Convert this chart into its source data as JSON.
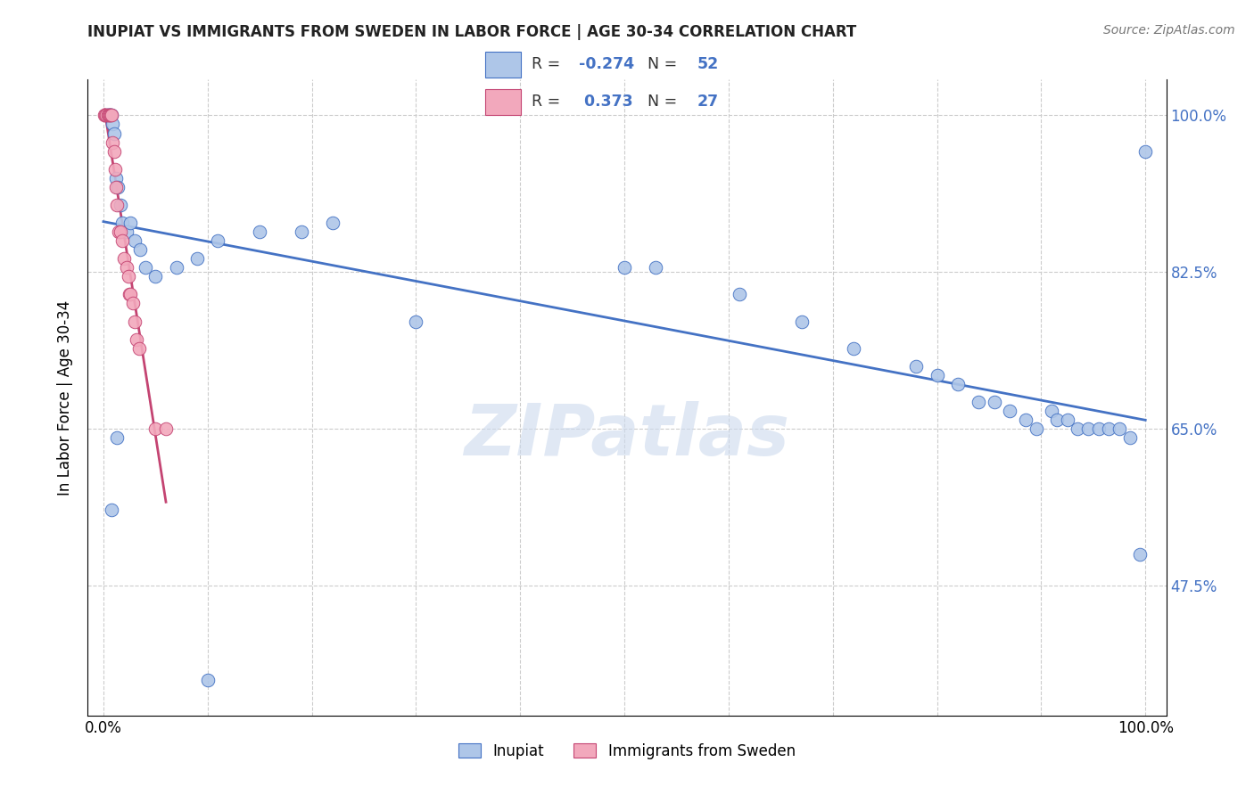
{
  "title": "INUPIAT VS IMMIGRANTS FROM SWEDEN IN LABOR FORCE | AGE 30-34 CORRELATION CHART",
  "source": "Source: ZipAtlas.com",
  "ylabel": "In Labor Force | Age 30-34",
  "blue_R": -0.274,
  "blue_N": 52,
  "pink_R": 0.373,
  "pink_N": 27,
  "blue_color": "#aec6e8",
  "pink_color": "#f2a8bc",
  "trend_blue": "#4472c4",
  "trend_pink": "#c44472",
  "watermark": "ZIPatlas",
  "yticks": [
    0.475,
    0.65,
    0.825,
    1.0
  ],
  "ytick_labels": [
    "47.5%",
    "65.0%",
    "82.5%",
    "100.0%"
  ],
  "ylim_low": 0.33,
  "ylim_high": 1.04,
  "xlim_low": -0.015,
  "xlim_high": 1.02,
  "blue_x": [
    0.003,
    0.004,
    0.005,
    0.006,
    0.007,
    0.008,
    0.009,
    0.01,
    0.012,
    0.014,
    0.016,
    0.018,
    0.022,
    0.026,
    0.03,
    0.035,
    0.04,
    0.05,
    0.07,
    0.09,
    0.11,
    0.15,
    0.19,
    0.22,
    0.3,
    0.5,
    0.53,
    0.61,
    0.67,
    0.72,
    0.78,
    0.8,
    0.82,
    0.84,
    0.855,
    0.87,
    0.885,
    0.895,
    0.91,
    0.915,
    0.925,
    0.935,
    0.945,
    0.955,
    0.965,
    0.975,
    0.985,
    0.995,
    1.0,
    0.008,
    0.013,
    0.1
  ],
  "blue_y": [
    1.0,
    1.0,
    1.0,
    1.0,
    1.0,
    1.0,
    0.99,
    0.98,
    0.93,
    0.92,
    0.9,
    0.88,
    0.87,
    0.88,
    0.86,
    0.85,
    0.83,
    0.82,
    0.83,
    0.84,
    0.86,
    0.87,
    0.87,
    0.88,
    0.77,
    0.83,
    0.83,
    0.8,
    0.77,
    0.74,
    0.72,
    0.71,
    0.7,
    0.68,
    0.68,
    0.67,
    0.66,
    0.65,
    0.67,
    0.66,
    0.66,
    0.65,
    0.65,
    0.65,
    0.65,
    0.65,
    0.64,
    0.51,
    0.96,
    0.56,
    0.64,
    0.37
  ],
  "pink_x": [
    0.001,
    0.002,
    0.003,
    0.004,
    0.005,
    0.006,
    0.007,
    0.008,
    0.009,
    0.01,
    0.011,
    0.012,
    0.013,
    0.015,
    0.016,
    0.018,
    0.02,
    0.022,
    0.024,
    0.025,
    0.026,
    0.028,
    0.03,
    0.032,
    0.034,
    0.05,
    0.06
  ],
  "pink_y": [
    1.0,
    1.0,
    1.0,
    1.0,
    1.0,
    1.0,
    1.0,
    1.0,
    0.97,
    0.96,
    0.94,
    0.92,
    0.9,
    0.87,
    0.87,
    0.86,
    0.84,
    0.83,
    0.82,
    0.8,
    0.8,
    0.79,
    0.77,
    0.75,
    0.74,
    0.65,
    0.65
  ]
}
